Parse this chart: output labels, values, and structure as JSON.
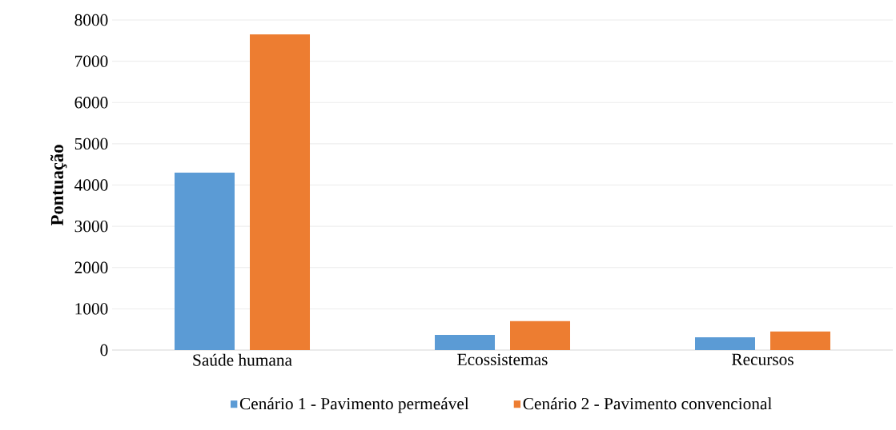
{
  "chart_data": {
    "type": "bar",
    "ylabel": "Pontuação",
    "categories": [
      "Saúde humana",
      "Ecossistemas",
      "Recursos"
    ],
    "series": [
      {
        "name": "Cenário 1 - Pavimento permeável",
        "color": "#5b9bd5",
        "values": [
          4300,
          370,
          310
        ]
      },
      {
        "name": "Cenário 2 - Pavimento convencional",
        "color": "#ed7d31",
        "values": [
          7650,
          700,
          450
        ]
      }
    ],
    "ylim": [
      0,
      8000
    ],
    "yticks": [
      0,
      1000,
      2000,
      3000,
      4000,
      5000,
      6000,
      7000,
      8000
    ],
    "grid": "y",
    "legend": "bottom"
  }
}
